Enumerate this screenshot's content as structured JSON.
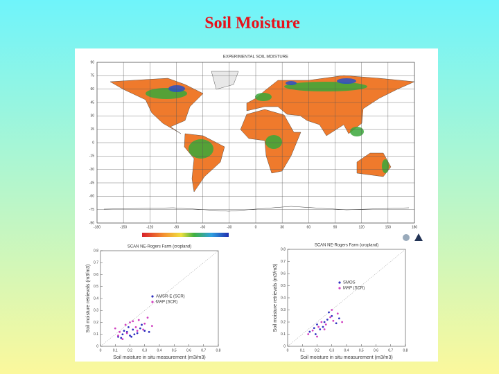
{
  "title": "Soil Moisture",
  "map": {
    "title": "EXPERIMENTAL SOIL MOISTURE",
    "lat_ticks": [
      90,
      75,
      60,
      45,
      30,
      15,
      0,
      -15,
      -30,
      -45,
      -60,
      -75,
      -90
    ],
    "lon_ticks": [
      -180,
      -150,
      -120,
      -90,
      -60,
      -30,
      0,
      30,
      60,
      90,
      120,
      150,
      180
    ]
  },
  "plots": [
    {
      "type": "scatter",
      "title": "SCAN NE-Rogers Farm (cropland)",
      "xlabel": "Soil moisture in situ measurement (m3/m3)",
      "ylabel": "Soil moisture retrievals (m3/m3)",
      "xlim": [
        0,
        0.8
      ],
      "ylim": [
        0,
        0.8
      ],
      "xticks": [
        0,
        0.1,
        0.2,
        0.3,
        0.4,
        0.5,
        0.6,
        0.7,
        0.8
      ],
      "yticks": [
        0,
        0.1,
        0.2,
        0.3,
        0.4,
        0.5,
        0.6,
        0.7,
        0.8
      ],
      "series": [
        {
          "name": "AMSR-E (SCR)",
          "color": "#3030c0",
          "x": [
            0.12,
            0.15,
            0.18,
            0.2,
            0.22,
            0.25,
            0.27,
            0.3,
            0.14,
            0.19,
            0.23,
            0.28,
            0.16,
            0.21,
            0.33
          ],
          "y": [
            0.08,
            0.1,
            0.12,
            0.09,
            0.14,
            0.11,
            0.15,
            0.13,
            0.07,
            0.16,
            0.1,
            0.18,
            0.13,
            0.08,
            0.12
          ]
        },
        {
          "name": "MAP (SCR)",
          "color": "#d040c0",
          "x": [
            0.1,
            0.13,
            0.17,
            0.2,
            0.24,
            0.26,
            0.3,
            0.35,
            0.12,
            0.18,
            0.22,
            0.29,
            0.15,
            0.25,
            0.32
          ],
          "y": [
            0.15,
            0.12,
            0.18,
            0.2,
            0.16,
            0.22,
            0.19,
            0.17,
            0.09,
            0.11,
            0.21,
            0.14,
            0.06,
            0.13,
            0.24
          ]
        }
      ]
    },
    {
      "type": "scatter",
      "title": "SCAN NE-Rogers Farm (cropland)",
      "xlabel": "Soil moisture in situ measurement (m3/m3)",
      "ylabel": "Soil moisture retrievals (m3/m3)",
      "xlim": [
        0,
        0.8
      ],
      "ylim": [
        0,
        0.8
      ],
      "xticks": [
        0,
        0.1,
        0.2,
        0.3,
        0.4,
        0.5,
        0.6,
        0.7,
        0.8
      ],
      "yticks": [
        0,
        0.1,
        0.2,
        0.3,
        0.4,
        0.5,
        0.6,
        0.7,
        0.8
      ],
      "series": [
        {
          "name": "SMOS",
          "color": "#3030c0",
          "x": [
            0.15,
            0.18,
            0.2,
            0.22,
            0.25,
            0.27,
            0.3,
            0.33,
            0.19,
            0.24,
            0.28,
            0.35
          ],
          "y": [
            0.12,
            0.15,
            0.18,
            0.14,
            0.2,
            0.22,
            0.25,
            0.19,
            0.1,
            0.16,
            0.28,
            0.23
          ]
        },
        {
          "name": "MAP (SCR)",
          "color": "#d040c0",
          "x": [
            0.14,
            0.17,
            0.21,
            0.23,
            0.26,
            0.29,
            0.31,
            0.34,
            0.2,
            0.25,
            0.3,
            0.37
          ],
          "y": [
            0.1,
            0.13,
            0.16,
            0.2,
            0.18,
            0.24,
            0.21,
            0.27,
            0.08,
            0.14,
            0.3,
            0.2
          ]
        }
      ]
    }
  ]
}
